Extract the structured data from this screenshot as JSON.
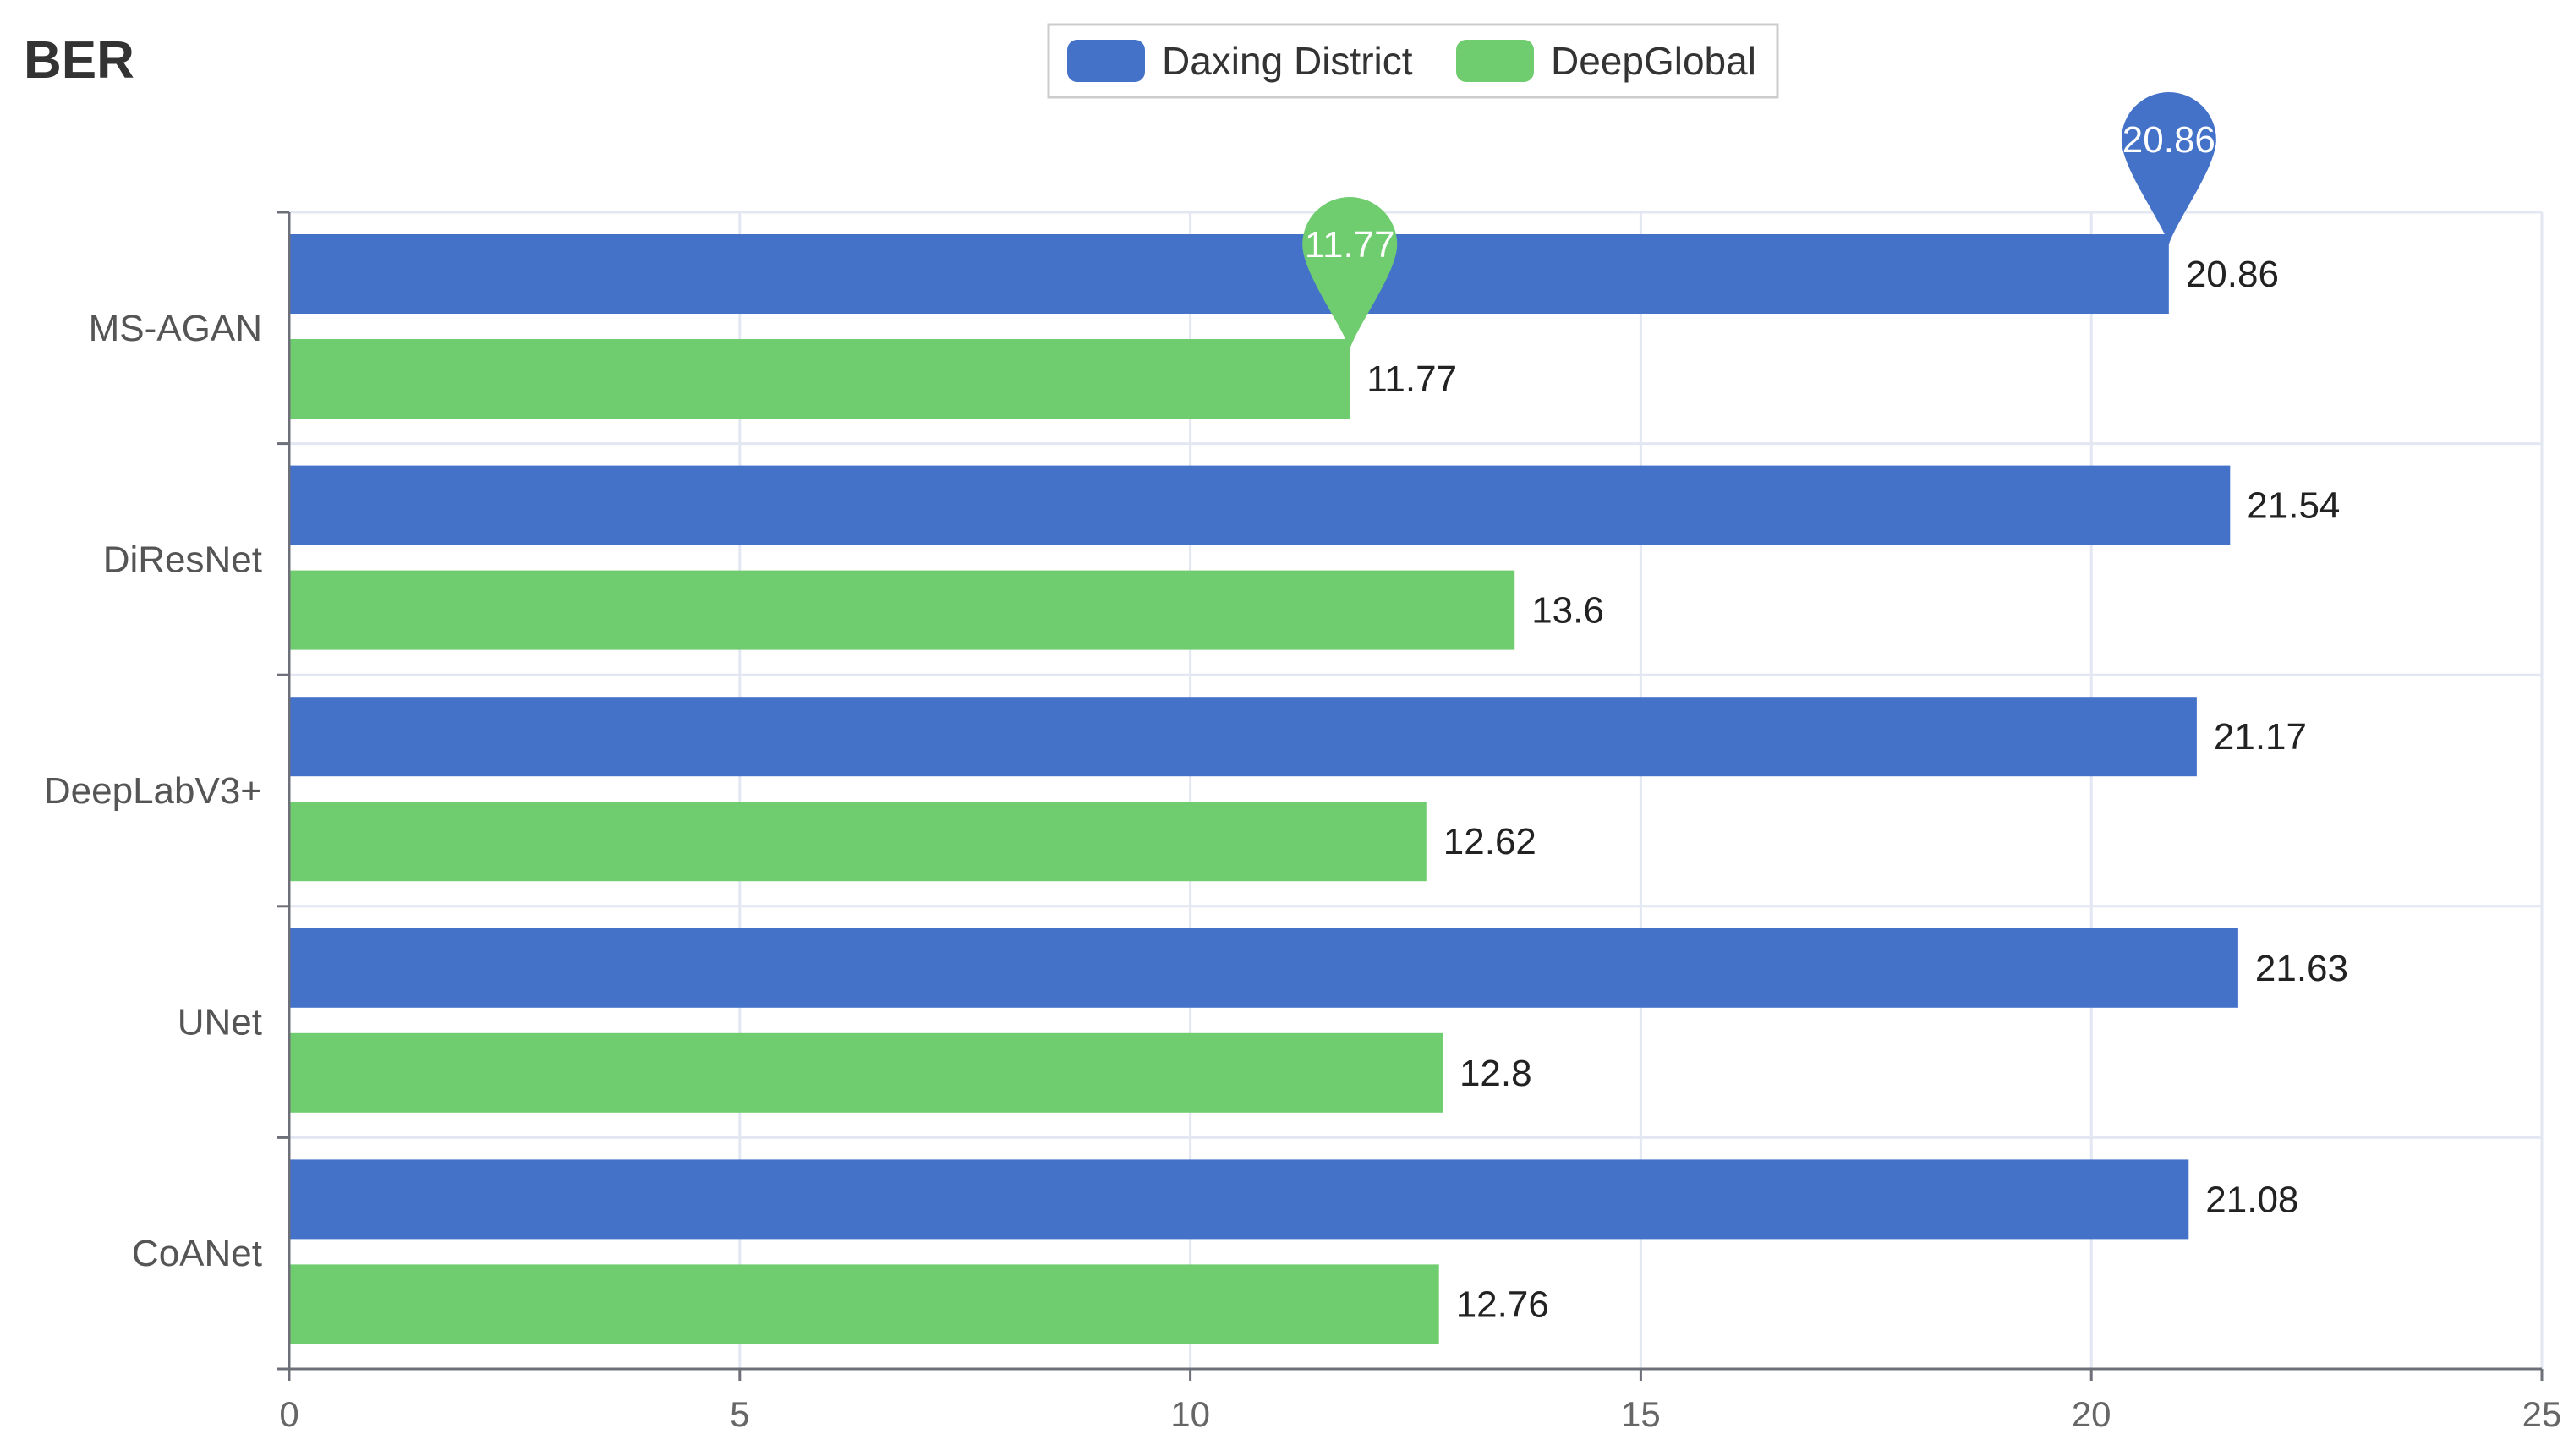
{
  "chart_data": {
    "type": "bar",
    "orientation": "horizontal",
    "title": "BER",
    "categories": [
      "MS-AGAN",
      "DiResNet",
      "DeepLabV3+",
      "UNet",
      "CoANet"
    ],
    "series": [
      {
        "name": "Daxing District",
        "color": "#4472c9",
        "values": [
          20.86,
          21.54,
          21.17,
          21.63,
          21.08
        ],
        "value_labels": [
          "20.86",
          "21.54",
          "21.17",
          "21.63",
          "21.08"
        ]
      },
      {
        "name": "DeepGlobal",
        "color": "#6fcd6f",
        "values": [
          11.77,
          13.6,
          12.62,
          12.8,
          12.76
        ],
        "value_labels": [
          "11.77",
          "13.6",
          "12.62",
          "12.8",
          "12.76"
        ]
      }
    ],
    "markers": [
      {
        "series": 0,
        "category": 0,
        "label": "20.86"
      },
      {
        "series": 1,
        "category": 0,
        "label": "11.77"
      }
    ],
    "xlim": [
      0,
      25
    ],
    "xticks": [
      "0",
      "5",
      "10",
      "15",
      "20",
      "25"
    ],
    "xlabel": "",
    "ylabel": "",
    "grid": true,
    "legend_position": "top-center"
  }
}
